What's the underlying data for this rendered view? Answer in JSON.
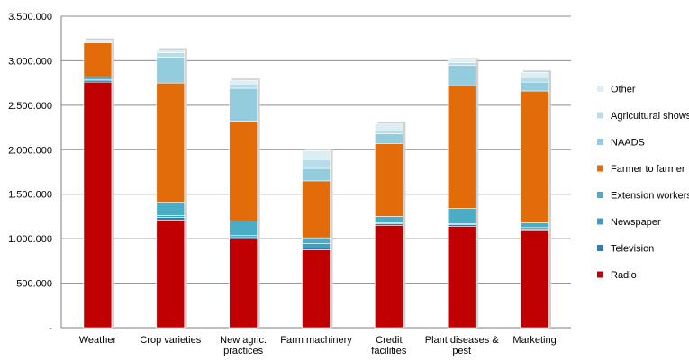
{
  "chart_data": {
    "type": "bar",
    "stacked": true,
    "categories": [
      "Weather",
      "Crop varieties",
      "New agric. practices",
      "Farm machinery",
      "Credit facilities",
      "Plant diseases & pest",
      "Marketing"
    ],
    "series": [
      {
        "name": "Radio",
        "color": "#C00000",
        "values": [
          2760000,
          1210000,
          1000000,
          875000,
          1150000,
          1140000,
          1090000
        ]
      },
      {
        "name": "Television",
        "color": "#2F7FA8",
        "values": [
          20000,
          30000,
          20000,
          20000,
          20000,
          20000,
          20000
        ]
      },
      {
        "name": "Newspaper",
        "color": "#3E9EC3",
        "values": [
          10000,
          20000,
          15000,
          50000,
          10000,
          10000,
          15000
        ]
      },
      {
        "name": "Extension workers",
        "color": "#4BACC6",
        "values": [
          30000,
          150000,
          165000,
          65000,
          70000,
          170000,
          55000
        ]
      },
      {
        "name": "Farmer to farmer",
        "color": "#E36C0A",
        "values": [
          380000,
          1340000,
          1120000,
          640000,
          820000,
          1380000,
          1480000
        ]
      },
      {
        "name": "NAADS",
        "color": "#93CDDD",
        "values": [
          0,
          290000,
          370000,
          140000,
          110000,
          230000,
          100000
        ]
      },
      {
        "name": "Agricultural shows",
        "color": "#B7DEE8",
        "values": [
          0,
          50000,
          50000,
          100000,
          30000,
          30000,
          50000
        ]
      },
      {
        "name": "Other",
        "color": "#DAEEF3",
        "values": [
          30000,
          30000,
          40000,
          100000,
          80000,
          30000,
          60000
        ]
      }
    ],
    "y_ticks": [
      "-",
      "500.000",
      "1.000.000",
      "1.500.000",
      "2.000.000",
      "2.500.000",
      "3.000.000",
      "3.500.000"
    ],
    "ylim": [
      0,
      3500000
    ],
    "grid": "horizontal",
    "legend": "right",
    "title": "",
    "xlabel": "",
    "ylabel": ""
  }
}
